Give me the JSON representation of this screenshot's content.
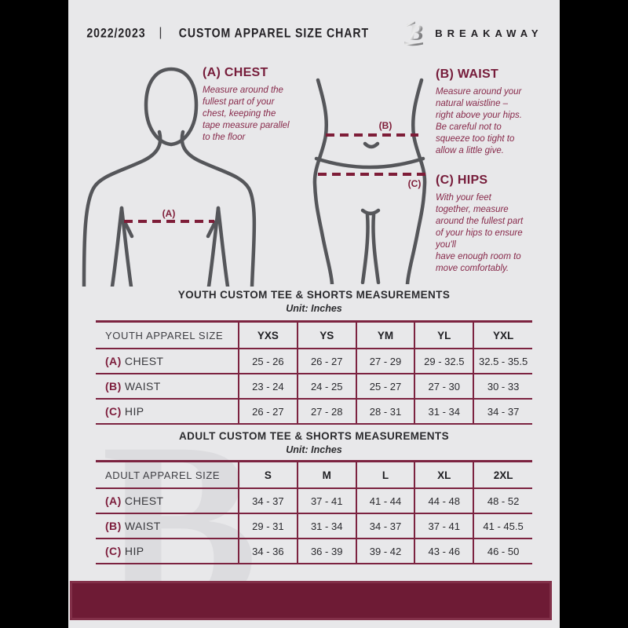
{
  "colors": {
    "background": "#e8e8ea",
    "pillarbox": "#000000",
    "maroon_accent": "#7c2340",
    "maroon_text": "#87294a",
    "footer_bar": "#6e1b35",
    "figure_outline": "#55565a",
    "ink": "#232125"
  },
  "header": {
    "year": "2022/2023",
    "divider": "|",
    "title": "CUSTOM APPAREL SIZE CHART",
    "brand": "BREAKAWAY"
  },
  "sections": {
    "chest": {
      "heading": "(A) CHEST",
      "body": "Measure around the\nfullest part of your\nchest, keeping the\ntape measure parallel\nto the floor"
    },
    "waist": {
      "heading": "(B) WAIST",
      "body": "Measure around your\nnatural waistline –\nright above your hips.\nBe careful not to\nsqueeze too tight to\nallow a little give."
    },
    "hips": {
      "heading": "(C) HIPS",
      "body": "With your feet\ntogether, measure\naround the fullest part\nof your hips to ensure\nyou'll\nhave enough room to\nmove comfortably."
    }
  },
  "figure_labels": {
    "chest": "(A)",
    "waist": "(B)",
    "hips": "(C)"
  },
  "watermark_letter": "B",
  "youth": {
    "title": "YOUTH CUSTOM TEE & SHORTS MEASUREMENTS",
    "unit": "Unit: Inches",
    "header": [
      "YOUTH APPAREL SIZE",
      "YXS",
      "YS",
      "YM",
      "YL",
      "YXL"
    ],
    "rows": [
      {
        "label_prefix": "(A)",
        "label": "CHEST",
        "values": [
          "25 - 26",
          "26 - 27",
          "27 - 29",
          "29 - 32.5",
          "32.5 - 35.5"
        ]
      },
      {
        "label_prefix": "(B)",
        "label": "WAIST",
        "values": [
          "23 - 24",
          "24 - 25",
          "25 - 27",
          "27 - 30",
          "30 - 33"
        ]
      },
      {
        "label_prefix": "(C)",
        "label": "HIP",
        "values": [
          "26 - 27",
          "27 - 28",
          "28 - 31",
          "31 - 34",
          "34 - 37"
        ]
      }
    ]
  },
  "adult": {
    "title": "ADULT CUSTOM TEE & SHORTS MEASUREMENTS",
    "unit": "Unit: Inches",
    "header": [
      "ADULT APPAREL SIZE",
      "S",
      "M",
      "L",
      "XL",
      "2XL"
    ],
    "rows": [
      {
        "label_prefix": "(A)",
        "label": "CHEST",
        "values": [
          "34 - 37",
          "37 - 41",
          "41 - 44",
          "44 - 48",
          "48 - 52"
        ]
      },
      {
        "label_prefix": "(B)",
        "label": "WAIST",
        "values": [
          "29 - 31",
          "31 - 34",
          "34 - 37",
          "37 - 41",
          "41 - 45.5"
        ]
      },
      {
        "label_prefix": "(C)",
        "label": "HIP",
        "values": [
          "34 - 36",
          "36 - 39",
          "39 - 42",
          "43 - 46",
          "46 - 50"
        ]
      }
    ]
  }
}
